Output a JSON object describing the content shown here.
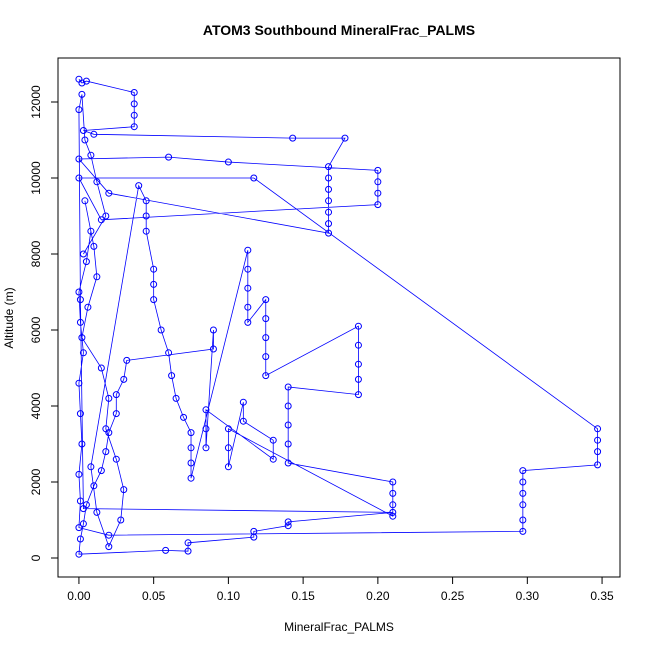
{
  "chart_data": {
    "type": "line",
    "title": "ATOM3 Southbound MineralFrac_PALMS",
    "x_label": "MineralFrac_PALMS",
    "y_label": "Altitude (m)",
    "color": "#0000ff",
    "x": [
      0,
      0.002,
      0.005,
      0.037,
      0.037,
      0.037,
      0.037,
      0.003,
      0.01,
      0.143,
      0.178,
      0.167,
      0.167,
      0.167,
      0.167,
      0.167,
      0.167,
      0.167,
      0.02,
      0,
      0.06,
      0.1,
      0.2,
      0.2,
      0.2,
      0.2,
      0.015,
      0,
      0.117,
      0.347,
      0.347,
      0.347,
      0.347,
      0.297,
      0.297,
      0.297,
      0.297,
      0.297,
      0.297,
      0.02,
      0,
      0.001,
      0,
      0.002,
      0.001,
      0,
      0.003,
      0.001,
      0,
      0.005,
      0.008,
      0.004,
      0.01,
      0.012,
      0.006,
      0.002,
      0.015,
      0.02,
      0.018,
      0.025,
      0.03,
      0.028,
      0.02,
      0.012,
      0.008,
      0.04,
      0.045,
      0.045,
      0.045,
      0.05,
      0.05,
      0.05,
      0.055,
      0.06,
      0.062,
      0.065,
      0.07,
      0.075,
      0.075,
      0.075,
      0.075,
      0.113,
      0.113,
      0.113,
      0.113,
      0.113,
      0.125,
      0.125,
      0.125,
      0.125,
      0.125,
      0.187,
      0.187,
      0.187,
      0.187,
      0.187,
      0.14,
      0.14,
      0.14,
      0.14,
      0.14,
      0.21,
      0.21,
      0.21,
      0.21,
      0.1,
      0.1,
      0.1,
      0.11,
      0.11,
      0.13,
      0.13,
      0.085,
      0.085,
      0.085,
      0.09,
      0.09,
      0.032,
      0.03,
      0.025,
      0.025,
      0.02,
      0.018,
      0.015,
      0.01,
      0.005,
      0.003,
      0.001,
      0,
      0.058,
      0.073,
      0.073,
      0.117,
      0.117,
      0.14,
      0.14,
      0.21,
      0.003,
      0.001,
      0,
      0.002,
      0.004,
      0.008,
      0.012,
      0.018,
      0.003
    ],
    "values": [
      12600,
      12500,
      12550,
      12250,
      11950,
      11650,
      11350,
      11250,
      11150,
      11050,
      11050,
      10300,
      10000,
      9700,
      9400,
      9100,
      8800,
      8550,
      9600,
      10500,
      10550,
      10420,
      10200,
      9900,
      9600,
      9300,
      8900,
      10000,
      10000,
      3400,
      3100,
      2800,
      2450,
      2300,
      2000,
      1700,
      1400,
      1000,
      700,
      600,
      800,
      1500,
      2200,
      3000,
      3800,
      4600,
      5400,
      6200,
      7000,
      7800,
      8600,
      9400,
      8200,
      7400,
      6600,
      5800,
      5000,
      4200,
      3400,
      2600,
      1800,
      1000,
      300,
      1200,
      2400,
      9800,
      9400,
      9000,
      8600,
      7600,
      7200,
      6800,
      6000,
      5400,
      4800,
      4200,
      3700,
      3300,
      2900,
      2500,
      2100,
      8100,
      7600,
      7100,
      6600,
      6200,
      6800,
      6300,
      5800,
      5300,
      4800,
      6100,
      5600,
      5100,
      4700,
      4300,
      4500,
      4000,
      3500,
      3000,
      2500,
      2000,
      1700,
      1400,
      1100,
      3400,
      2900,
      2400,
      4100,
      3600,
      3100,
      2600,
      3900,
      3400,
      2900,
      6000,
      5500,
      5200,
      4700,
      4300,
      3800,
      3300,
      2800,
      2300,
      1900,
      1400,
      900,
      500,
      100,
      200,
      180,
      400,
      550,
      700,
      850,
      950,
      1200,
      1300,
      6800,
      11800,
      12200,
      11000,
      10600,
      9900,
      9000,
      8000
    ],
    "xlim": [
      -0.014,
      0.362
    ],
    "ylim": [
      -500,
      13158
    ],
    "xticks": [
      {
        "value": 0,
        "label": "0.00"
      },
      {
        "value": 0.05,
        "label": "0.05"
      },
      {
        "value": 0.1,
        "label": "0.10"
      },
      {
        "value": 0.15,
        "label": "0.15"
      },
      {
        "value": 0.2,
        "label": "0.20"
      },
      {
        "value": 0.25,
        "label": "0.25"
      },
      {
        "value": 0.3,
        "label": "0.30"
      },
      {
        "value": 0.35,
        "label": "0.35"
      }
    ],
    "yticks": [
      0,
      2000,
      4000,
      6000,
      8000,
      10000,
      12000
    ]
  }
}
